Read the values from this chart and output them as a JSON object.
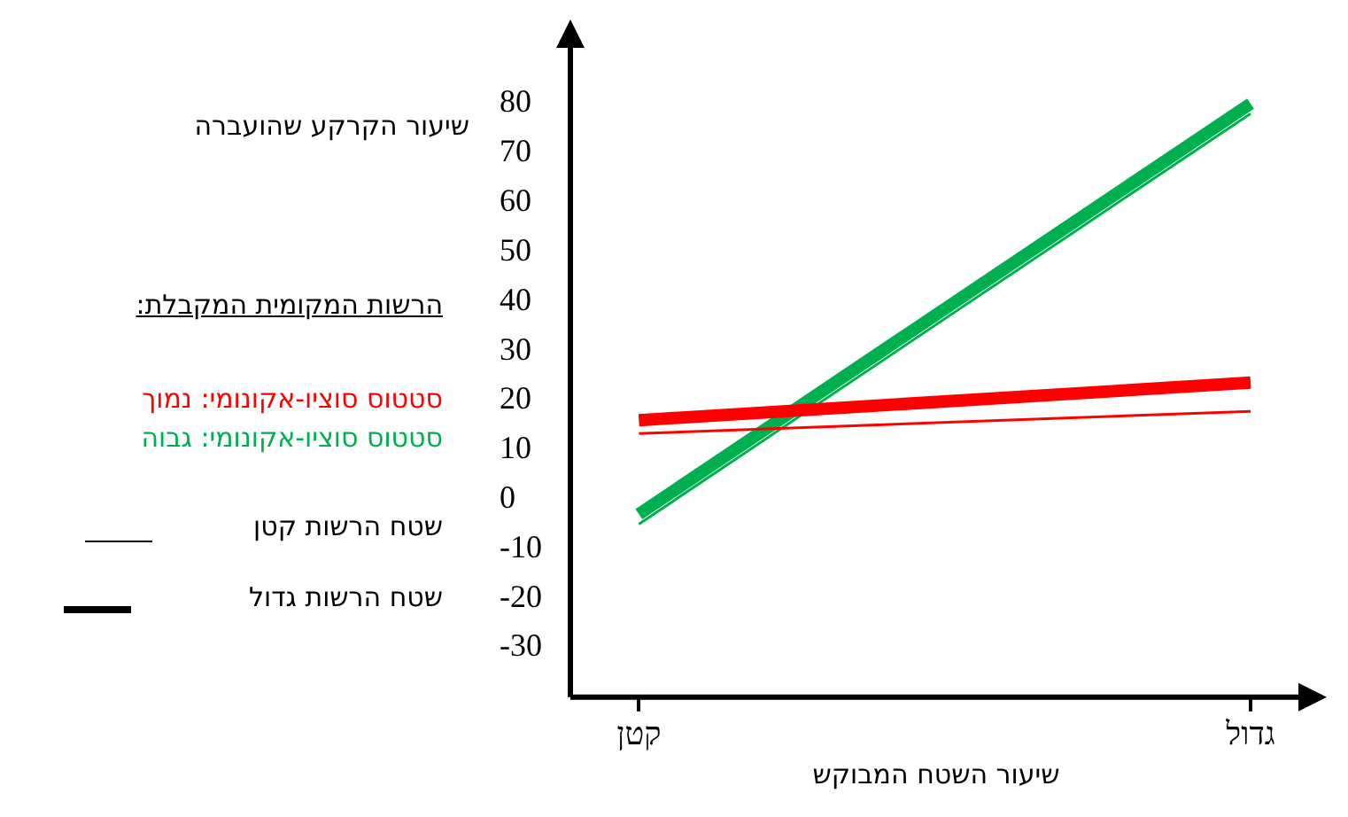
{
  "chart_data": {
    "type": "line",
    "xlabel": "שיעור השטח המבוקש",
    "ylabel": "שיעור הקרקע שהועברה",
    "legend_title": "הרשות המקומית המקבלת:",
    "annotations": [
      "סטטוס סוציו-אקונומי: נמוך",
      "סטטוס סוציו-אקונומי: גבוה",
      "שטח הרשות קטן",
      "שטח הרשות גדול"
    ],
    "categories": [
      "קטן",
      "גדול"
    ],
    "series": [
      {
        "color": "#ff0000",
        "values": [
          13.3,
          17.8
        ]
      },
      {
        "color": "#ff0000",
        "values": [
          16,
          23.6
        ]
      },
      {
        "color": "#00b050",
        "values": [
          -5,
          78
        ]
      },
      {
        "color": "#00b050",
        "values": [
          -3,
          80
        ]
      }
    ],
    "ylim": [
      -40,
      92
    ],
    "yticks": [
      -30,
      -20,
      -10,
      0,
      10,
      20,
      30,
      40,
      50,
      60,
      70,
      80
    ],
    "grid": false,
    "legend": false,
    "marker": "none",
    "line_style": "solid"
  }
}
